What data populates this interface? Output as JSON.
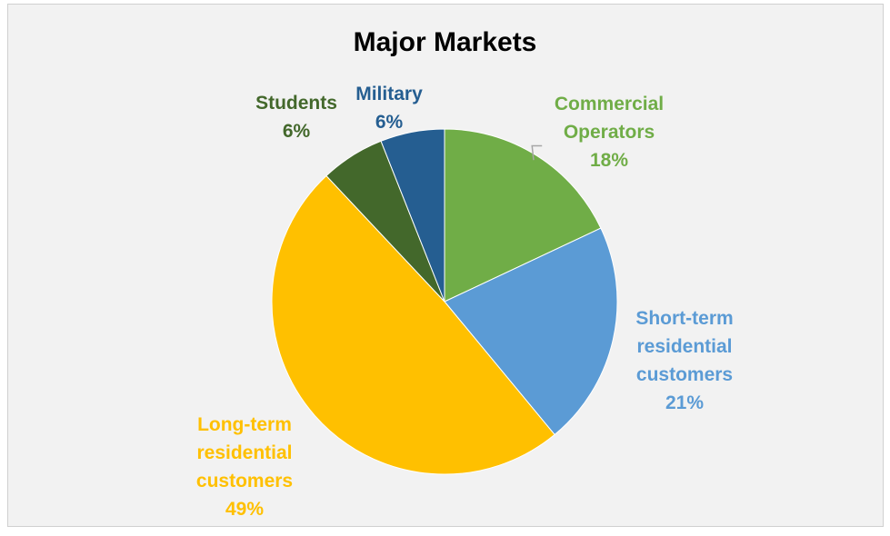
{
  "chart_data": {
    "type": "pie",
    "title": "Major Markets",
    "slices": [
      {
        "label": "Commercial Operators",
        "label_lines": [
          "Commercial",
          "Operators"
        ],
        "value": 18,
        "display": "18%",
        "color": "#70ad47"
      },
      {
        "label": "Short-term residential customers",
        "label_lines": [
          "Short-term",
          "residential",
          "customers"
        ],
        "value": 21,
        "display": "21%",
        "color": "#5b9bd5"
      },
      {
        "label": "Long-term residential customers",
        "label_lines": [
          "Long-term",
          "residential",
          "customers"
        ],
        "value": 49,
        "display": "49%",
        "color": "#ffc000"
      },
      {
        "label": "Students",
        "label_lines": [
          "Students"
        ],
        "value": 6,
        "display": "6%",
        "color": "#43682b"
      },
      {
        "label": "Military",
        "label_lines": [
          "Military"
        ],
        "value": 6,
        "display": "6%",
        "color": "#255e91"
      }
    ],
    "legend": "none",
    "data_labels": "category name and percentage"
  }
}
